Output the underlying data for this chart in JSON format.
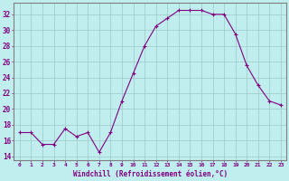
{
  "x": [
    0,
    1,
    2,
    3,
    4,
    5,
    6,
    7,
    8,
    9,
    10,
    11,
    12,
    13,
    14,
    15,
    16,
    17,
    18,
    19,
    20,
    21,
    22,
    23
  ],
  "y": [
    17,
    17,
    15.5,
    15.5,
    17.5,
    16.5,
    17,
    14.5,
    17,
    21,
    24.5,
    28,
    30.5,
    31.5,
    32.5,
    32.5,
    32.5,
    32,
    32,
    29.5,
    25.5,
    23,
    21,
    20.5
  ],
  "line_color": "#800080",
  "marker": "+",
  "bg_color": "#c0eeee",
  "grid_color": "#a0c8c8",
  "xlabel": "Windchill (Refroidissement éolien,°C)",
  "ylabel_ticks": [
    14,
    16,
    18,
    20,
    22,
    24,
    26,
    28,
    30,
    32
  ],
  "ylim": [
    13.5,
    33.5
  ],
  "xlim": [
    -0.5,
    23.5
  ],
  "tick_color": "#800080",
  "label_color": "#800080",
  "spine_color": "#808080",
  "xtick_fontsize": 4.5,
  "ytick_fontsize": 5.5,
  "xlabel_fontsize": 5.5
}
